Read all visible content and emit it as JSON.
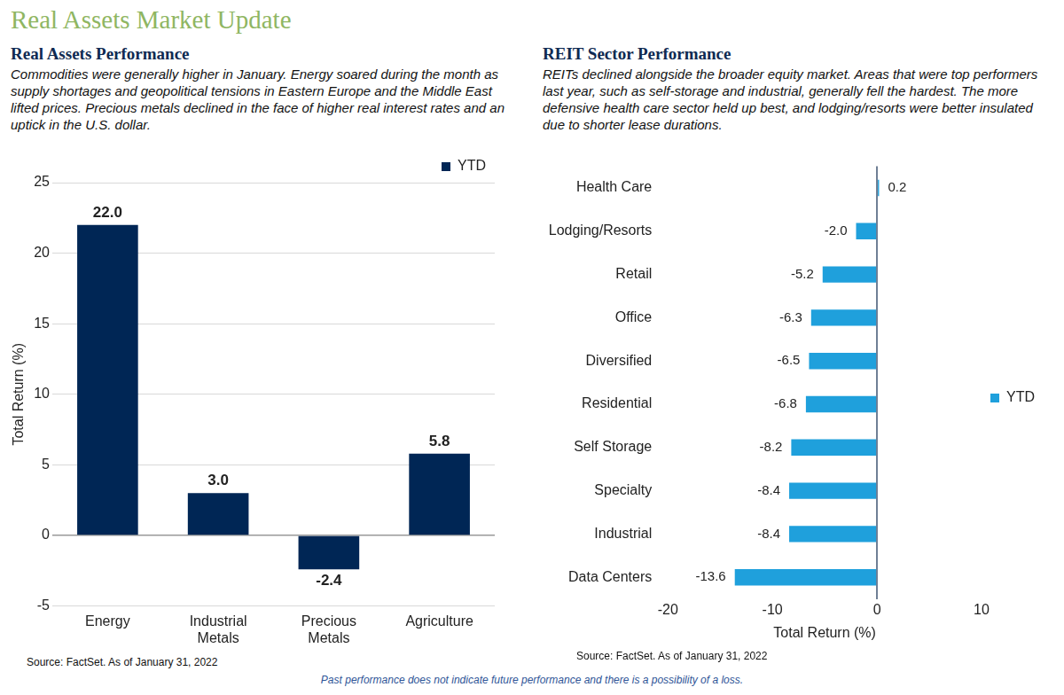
{
  "title": "Real Assets Market Update",
  "footer": "Past performance does not indicate future performance and there is a possibility of a loss.",
  "chart_data": [
    {
      "type": "bar",
      "title": "Real Assets Performance",
      "subtitle": "Commodities were generally higher in January. Energy soared during the month as supply shortages and geopolitical tensions in Eastern Europe and the Middle East lifted prices. Precious metals declined in the face of higher real interest rates and an uptick in the U.S. dollar.",
      "source": "Source: FactSet. As of January 31, 2022",
      "y_label": "Total Return (%)",
      "categories": [
        "Energy",
        "Industrial Metals",
        "Precious Metals",
        "Agriculture"
      ],
      "series": [
        {
          "name": "YTD",
          "color": "#002655",
          "values": [
            22.0,
            3.0,
            -2.4,
            5.8
          ],
          "value_labels": [
            "22.0",
            "3.0",
            "-2.4",
            "5.8"
          ]
        }
      ],
      "ylim": [
        -5,
        25
      ],
      "yticks": [
        -5,
        0,
        5,
        10,
        15,
        20,
        25
      ],
      "grid": true,
      "legend": "top right",
      "data_labels": true
    },
    {
      "type": "bar",
      "orientation": "horizontal",
      "title": "REIT Sector Performance",
      "subtitle": "REITs declined alongside the broader equity market. Areas that were top performers last year, such as self-storage and industrial, generally fell the hardest. The more defensive health care sector held up best, and lodging/resorts were better insulated due to shorter lease durations.",
      "source": "Source: FactSet. As of January 31, 2022",
      "x_label": "Total Return (%)",
      "categories": [
        "Health Care",
        "Lodging/Resorts",
        "Retail",
        "Office",
        "Diversified",
        "Residential",
        "Self Storage",
        "Specialty",
        "Industrial",
        "Data Centers"
      ],
      "series": [
        {
          "name": "YTD",
          "color": "#1fa0dc",
          "values": [
            0.2,
            -2.0,
            -5.2,
            -6.3,
            -6.5,
            -6.8,
            -8.2,
            -8.4,
            -8.4,
            -13.6
          ],
          "value_labels": [
            "0.2",
            "-2.0",
            "-5.2",
            "-6.3",
            "-6.5",
            "-6.8",
            "-8.2",
            "-8.4",
            "-8.4",
            "-13.6"
          ]
        }
      ],
      "xlim": [
        -20,
        10
      ],
      "xticks": [
        -20,
        -10,
        0,
        10
      ],
      "grid": false,
      "legend": "right",
      "data_labels": true
    }
  ]
}
